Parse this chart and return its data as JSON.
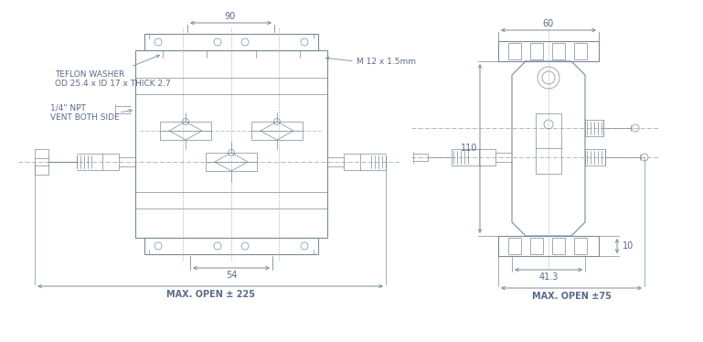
{
  "bg_color": "#ffffff",
  "line_color": "#7a8a9a",
  "dim_color": "#7a8a9a",
  "text_color": "#5a6a8a",
  "annotations": {
    "teflon_washer": "TEFLON WASHER\nOD 25.4 x ID 17 x THICK 2.7",
    "npt": "1/4\" NPT\nVENT BOTH SIDE",
    "m12": "M 12 x 1.5mm",
    "dim_90": "90",
    "dim_54": "54",
    "dim_max_open_225": "MAX. OPEN ± 225",
    "dim_60": "60",
    "dim_110": "110",
    "dim_10": "10",
    "dim_41_3": "41.3",
    "dim_max_open_75": "MAX. OPEN ±75"
  }
}
